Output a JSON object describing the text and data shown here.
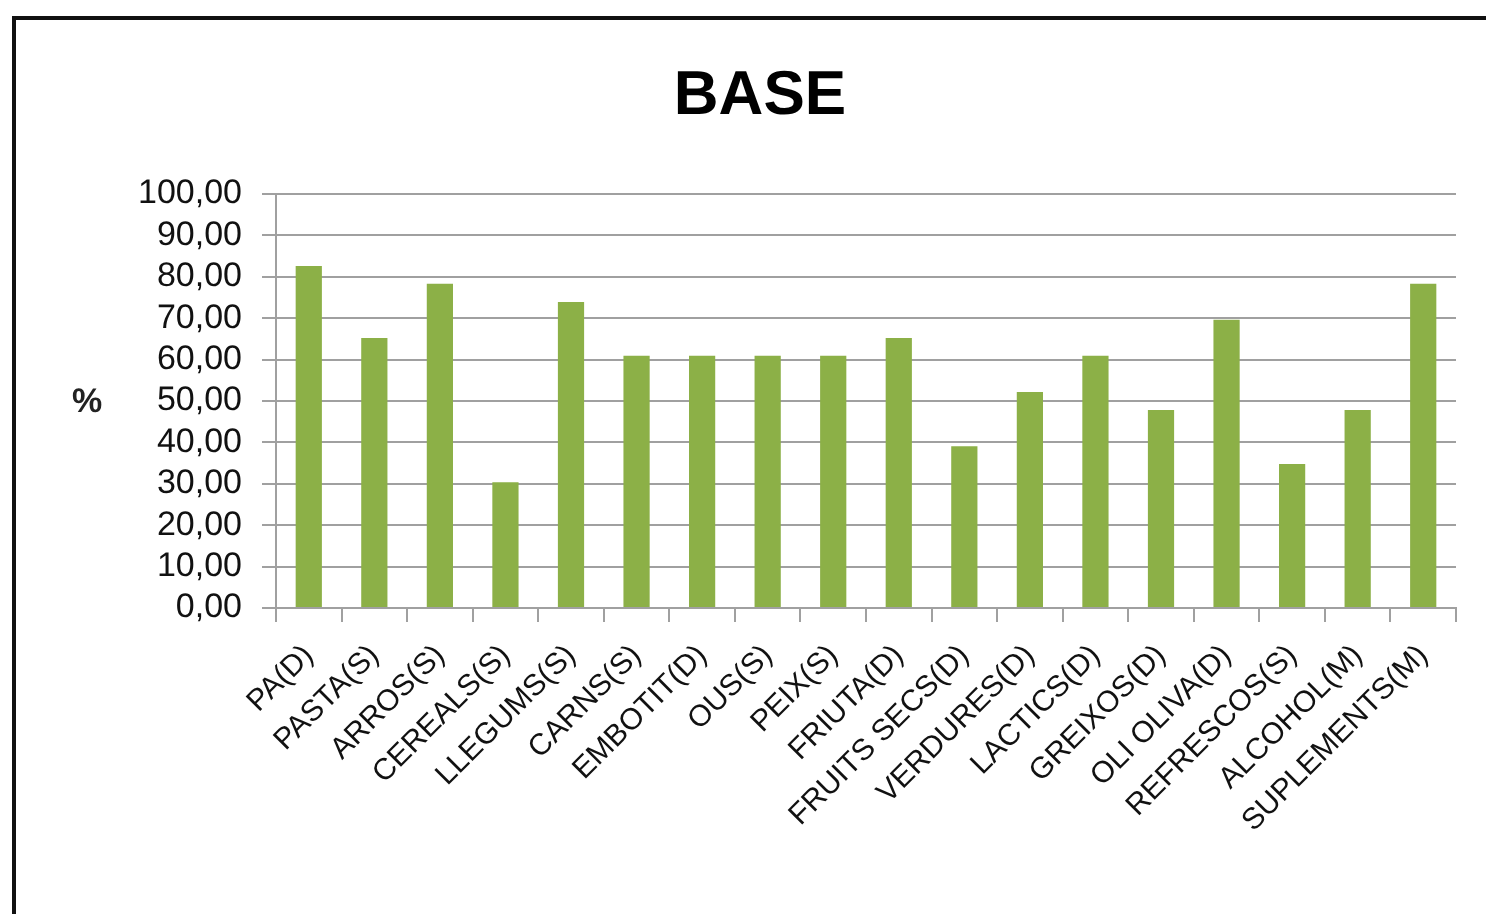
{
  "chart_data": {
    "type": "bar",
    "title": "BASE",
    "ylabel": "%",
    "categories": [
      "PA(D)",
      "PASTA(S)",
      "ARROS(S)",
      "CEREALS(S)",
      "LLEGUMS(S)",
      "CARNS(S)",
      "EMBOTIT(D)",
      "OUS(S)",
      "PEIX(S)",
      "FRIUTA(D)",
      "FRUITS SECS(D)",
      "VERDURES(D)",
      "LACTICS(D)",
      "GREIXOS(D)",
      "OLI OLIVA(D)",
      "REFRESCOS(S)",
      "ALCOHOL(M)",
      "SUPLEMENTS(M)"
    ],
    "values": [
      82.6,
      65.2,
      78.3,
      30.4,
      73.9,
      60.9,
      60.9,
      60.9,
      60.9,
      65.2,
      39.1,
      52.2,
      60.9,
      47.8,
      69.6,
      34.8,
      47.8,
      78.3
    ],
    "color": "#8cb047",
    "ylim": [
      0,
      100
    ],
    "yticks": [
      {
        "value": 0,
        "label": "0,00"
      },
      {
        "value": 10,
        "label": "10,00"
      },
      {
        "value": 20,
        "label": "20,00"
      },
      {
        "value": 30,
        "label": "30,00"
      },
      {
        "value": 40,
        "label": "40,00"
      },
      {
        "value": 50,
        "label": "50,00"
      },
      {
        "value": 60,
        "label": "60,00"
      },
      {
        "value": 70,
        "label": "70,00"
      },
      {
        "value": 80,
        "label": "80,00"
      },
      {
        "value": 90,
        "label": "90,00"
      },
      {
        "value": 100,
        "label": "100,00"
      }
    ],
    "grid": "y"
  }
}
